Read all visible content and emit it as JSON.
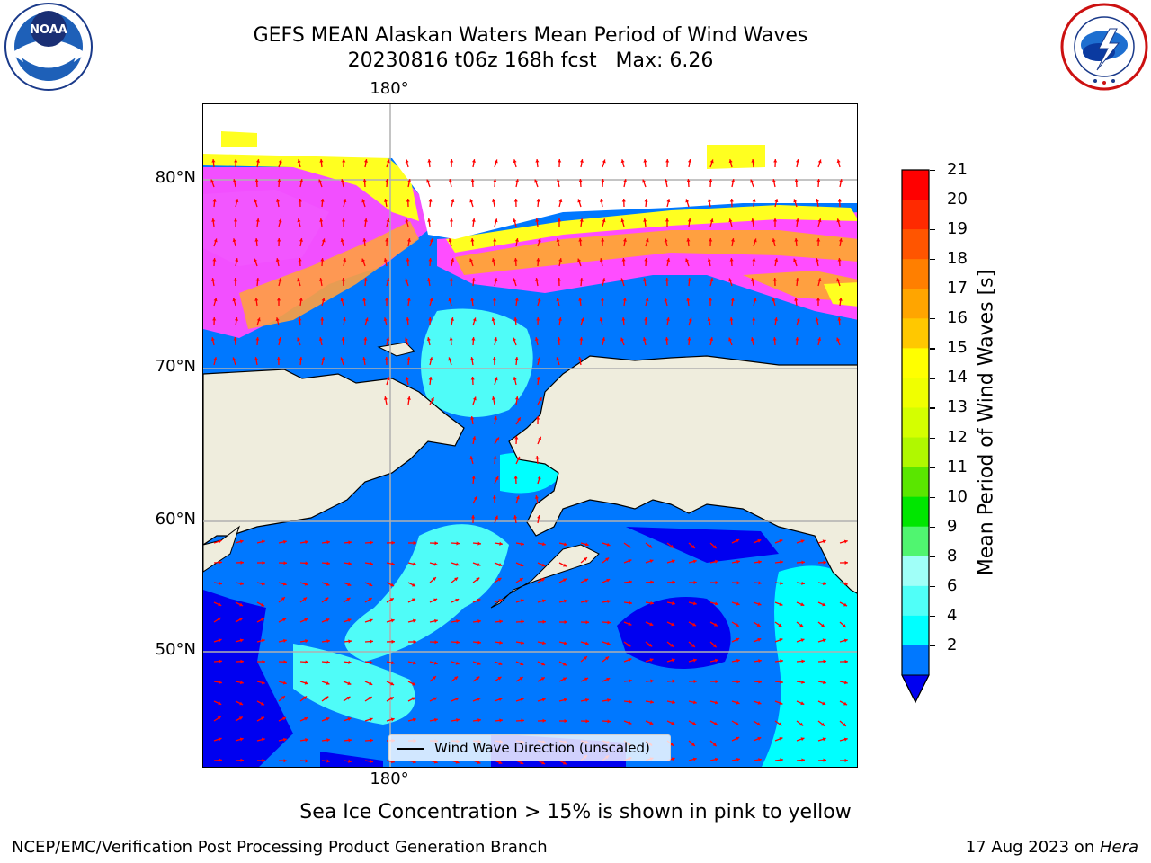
{
  "title": {
    "line1": "GEFS MEAN Alaskan Waters Mean Period of Wind Waves",
    "line2": "20230816 t06z 168h fcst   Max: 6.26"
  },
  "logos": {
    "left": {
      "name": "noaa-logo",
      "text": "NOAA"
    },
    "right": {
      "name": "nws-logo"
    }
  },
  "map": {
    "lat_labels": [
      "80°N",
      "70°N",
      "60°N",
      "50°N"
    ],
    "lon_label_top": "180°",
    "lon_label_bottom": "180°",
    "colors": {
      "land": "#efeddd",
      "deep_blue": "#0000f0",
      "blue": "#0078ff",
      "cyan": "#00ffff",
      "light_cyan": "#4ffcf8",
      "pink": "#ff4dff",
      "orange": "#ffa040",
      "yellow": "#ffff20",
      "arrow": "#ff0000",
      "grid": "#b0b0b0"
    },
    "legend": "Wind Wave Direction (unscaled)"
  },
  "colorbar": {
    "label": "Mean Period of Wind Waves [s]",
    "ticks": [
      "21",
      "20",
      "19",
      "18",
      "17",
      "16",
      "15",
      "14",
      "13",
      "12",
      "11",
      "10",
      "9",
      "8",
      "6",
      "4",
      "2"
    ],
    "colors": [
      "#ff0000",
      "#ff2a00",
      "#ff5500",
      "#ff7f00",
      "#ffa500",
      "#ffc800",
      "#ffff00",
      "#f0ff00",
      "#d4ff00",
      "#b0f800",
      "#5ae600",
      "#00e600",
      "#50f570",
      "#a0fff8",
      "#50fff8",
      "#00ffff",
      "#0078ff"
    ],
    "extend_color": "#0000f0"
  },
  "note": "Sea Ice Concentration > 15% is shown in pink to yellow",
  "footer": {
    "left": "NCEP/EMC/Verification Post Processing Product Generation Branch",
    "right_date": "17 Aug 2023 on ",
    "right_host": "Hera"
  }
}
